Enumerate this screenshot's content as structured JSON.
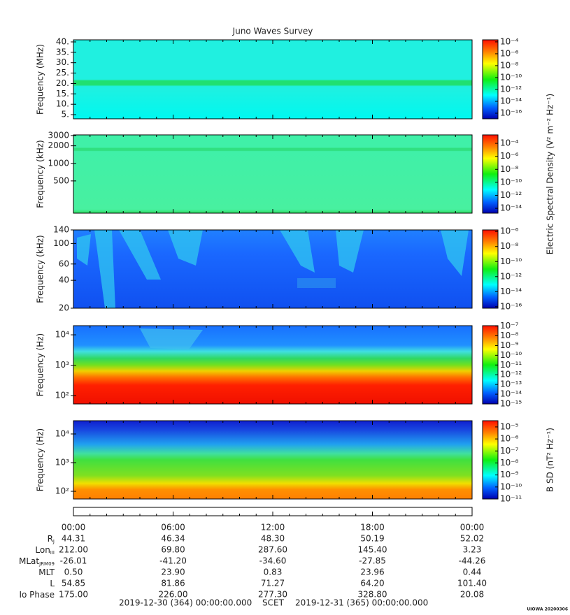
{
  "chart_data": [
    {
      "type": "heatmap",
      "title": "Juno Waves Survey",
      "ylabel": "Frequency (MHz)",
      "ylog": false,
      "ylim": [
        3,
        41
      ],
      "yticks": [
        {
          "value": 5,
          "label": "5."
        },
        {
          "value": 10,
          "label": "10."
        },
        {
          "value": 15,
          "label": "15."
        },
        {
          "value": 20,
          "label": "20."
        },
        {
          "value": 25,
          "label": "25."
        },
        {
          "value": 30,
          "label": "30."
        },
        {
          "value": 35,
          "label": "35."
        },
        {
          "value": 40,
          "label": "40."
        }
      ],
      "colorbar": {
        "log": true,
        "lim": [
          1.15e-17,
          0.00022
        ],
        "ticks": [
          {
            "value": 0.0001,
            "label": "10⁻⁴"
          },
          {
            "value": 1e-06,
            "label": "10⁻⁶"
          },
          {
            "value": 1e-08,
            "label": "10⁻⁸"
          },
          {
            "value": 1e-10,
            "label": "10⁻¹⁰"
          },
          {
            "value": 1e-12,
            "label": "10⁻¹²"
          },
          {
            "value": 1e-14,
            "label": "10⁻¹⁴"
          },
          {
            "value": 1e-16,
            "label": "10⁻¹⁶"
          }
        ]
      }
    },
    {
      "type": "heatmap",
      "ylabel": "Frequency (kHz)",
      "ylog": true,
      "ylim": [
        140,
        3080
      ],
      "yticks": [
        500,
        1000,
        2000,
        3000
      ],
      "zlabel": "Electric Spectral Density (V² m⁻² Hz⁻¹)",
      "colorbar": {
        "log": true,
        "lim": [
          1.8e-15,
          0.002
        ],
        "ticks": [
          {
            "value": 0.0001,
            "label": "10⁻⁴"
          },
          {
            "value": 1e-06,
            "label": "10⁻⁶"
          },
          {
            "value": 1e-08,
            "label": "10⁻⁸"
          },
          {
            "value": 1e-10,
            "label": "10⁻¹⁰"
          },
          {
            "value": 1e-12,
            "label": "10⁻¹²"
          },
          {
            "value": 1e-14,
            "label": "10⁻¹⁴"
          }
        ]
      }
    },
    {
      "type": "heatmap",
      "ylabel": "Frequency (kHz)",
      "ylog": true,
      "ylim": [
        20,
        140
      ],
      "yticks": [
        20,
        40,
        60,
        100,
        140
      ],
      "colorbar": {
        "log": true,
        "lim": [
          6.3e-17,
          1.6e-06
        ],
        "ticks": [
          {
            "value": 1e-06,
            "label": "10⁻⁶"
          },
          {
            "value": 1e-08,
            "label": "10⁻⁸"
          },
          {
            "value": 1e-10,
            "label": "10⁻¹⁰"
          },
          {
            "value": 1e-12,
            "label": "10⁻¹²"
          },
          {
            "value": 1e-14,
            "label": "10⁻¹⁴"
          },
          {
            "value": 1e-16,
            "label": "10⁻¹⁶"
          }
        ]
      }
    },
    {
      "type": "heatmap",
      "ylabel": "Frequency (Hz)",
      "ylog": true,
      "ylim": [
        53,
        20000
      ],
      "yticks": [
        {
          "value": 100,
          "label": "10²"
        },
        {
          "value": 1000,
          "label": "10³"
        },
        {
          "value": 10000,
          "label": "10⁴"
        }
      ],
      "colorbar": {
        "log": true,
        "lim": [
          1e-15,
          1.1e-07
        ],
        "ticks": [
          {
            "value": 1e-07,
            "label": "10⁻⁷"
          },
          {
            "value": 1e-08,
            "label": "10⁻⁸"
          },
          {
            "value": 1e-09,
            "label": "10⁻⁹"
          },
          {
            "value": 1e-10,
            "label": "10⁻¹⁰"
          },
          {
            "value": 1e-11,
            "label": "10⁻¹¹"
          },
          {
            "value": 1e-12,
            "label": "10⁻¹²"
          },
          {
            "value": 1e-13,
            "label": "10⁻¹³"
          },
          {
            "value": 1e-14,
            "label": "10⁻¹⁴"
          },
          {
            "value": 1e-15,
            "label": "10⁻¹⁵"
          }
        ]
      }
    },
    {
      "type": "heatmap",
      "ylabel": "Frequency (Hz)",
      "ylog": true,
      "ylim": [
        54,
        29000
      ],
      "yticks": [
        {
          "value": 100,
          "label": "10²"
        },
        {
          "value": 1000,
          "label": "10³"
        },
        {
          "value": 10000,
          "label": "10⁴"
        }
      ],
      "zlabel": "B SD (nT² Hz⁻¹)",
      "colorbar": {
        "log": true,
        "lim": [
          1e-11,
          3.3e-05
        ],
        "ticks": [
          {
            "value": 1e-05,
            "label": "10⁻⁵"
          },
          {
            "value": 1e-06,
            "label": "10⁻⁶"
          },
          {
            "value": 1e-07,
            "label": "10⁻⁷"
          },
          {
            "value": 1e-08,
            "label": "10⁻⁸"
          },
          {
            "value": 1e-09,
            "label": "10⁻⁹"
          },
          {
            "value": 1e-10,
            "label": "10⁻¹⁰"
          },
          {
            "value": 1e-11,
            "label": "10⁻¹¹"
          }
        ]
      }
    }
  ],
  "time_axis": {
    "xlim": [
      0,
      24
    ],
    "xticks": [
      {
        "value": 0,
        "label": "00:00"
      },
      {
        "value": 6,
        "label": "06:00"
      },
      {
        "value": 12,
        "label": "12:00"
      },
      {
        "value": 18,
        "label": "18:00"
      },
      {
        "value": 24,
        "label": "00:00"
      }
    ]
  },
  "ephemeris": [
    {
      "label": "R",
      "sub": "J",
      "values": [
        "44.31",
        "46.34",
        "48.30",
        "50.19",
        "52.02"
      ]
    },
    {
      "label": "Lon",
      "sub": "III",
      "values": [
        "212.00",
        "69.80",
        "287.60",
        "145.40",
        "3.23"
      ]
    },
    {
      "label": "MLat",
      "sub": "JRM09",
      "values": [
        "-26.01",
        "-41.20",
        "-34.60",
        "-27.85",
        "-44.26"
      ]
    },
    {
      "label": "MLT",
      "values": [
        "0.50",
        "23.90",
        "0.83",
        "23.96",
        "0.44"
      ]
    },
    {
      "label": "L",
      "values": [
        "54.85",
        "81.86",
        "71.27",
        "64.20",
        "101.40"
      ]
    },
    {
      "label": "Io Phase",
      "values": [
        "175.00",
        "226.00",
        "277.30",
        "328.80",
        "20.08"
      ]
    }
  ],
  "footer": {
    "start": "2019-12-30 (364) 00:00:00.000",
    "axis": "SCET",
    "end": "2019-12-31 (365) 00:00:00.000"
  },
  "credit": "UIOWA 20200306"
}
